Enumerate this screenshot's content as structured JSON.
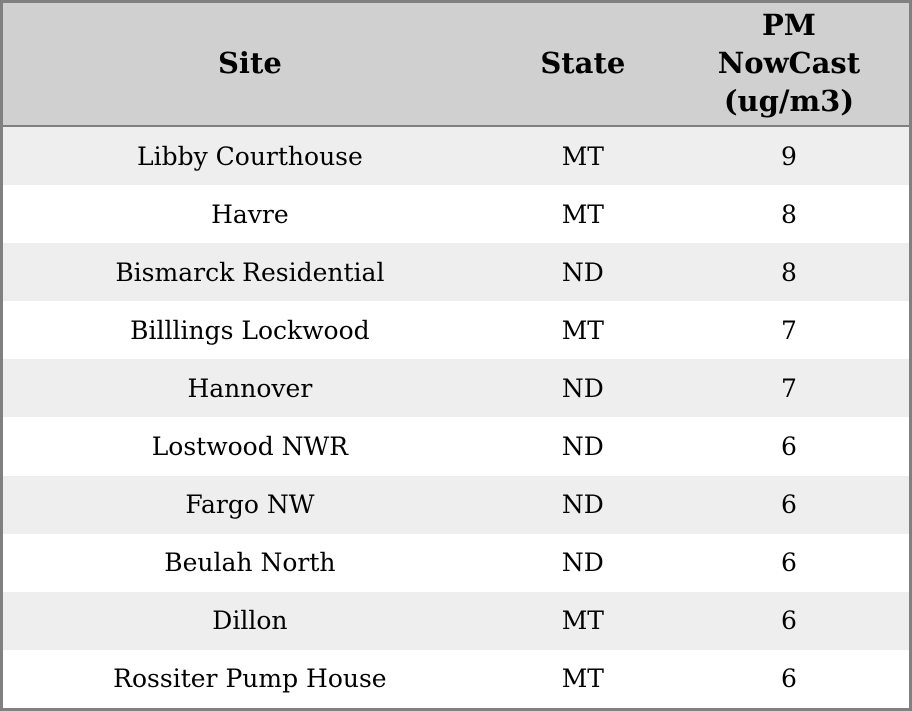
{
  "table": {
    "columns": [
      {
        "label": "Site"
      },
      {
        "label": "State"
      },
      {
        "label": "PM\nNowCast\n(ug/m3)"
      }
    ],
    "rows": [
      {
        "site": "Libby Courthouse",
        "state": "MT",
        "pm_nowcast": "9"
      },
      {
        "site": "Havre",
        "state": "MT",
        "pm_nowcast": "8"
      },
      {
        "site": "Bismarck Residential",
        "state": "ND",
        "pm_nowcast": "8"
      },
      {
        "site": "Billlings Lockwood",
        "state": "MT",
        "pm_nowcast": "7"
      },
      {
        "site": "Hannover",
        "state": "ND",
        "pm_nowcast": "7"
      },
      {
        "site": "Lostwood NWR",
        "state": "ND",
        "pm_nowcast": "6"
      },
      {
        "site": "Fargo NW",
        "state": "ND",
        "pm_nowcast": "6"
      },
      {
        "site": "Beulah North",
        "state": "ND",
        "pm_nowcast": "6"
      },
      {
        "site": "Dillon",
        "state": "MT",
        "pm_nowcast": "6"
      },
      {
        "site": "Rossiter Pump House",
        "state": "MT",
        "pm_nowcast": "6"
      }
    ],
    "colors": {
      "outer_border": "#808080",
      "header_bg": "#d0d0d0",
      "header_separator": "#808080",
      "row_stripe_bg": "#eeeeee",
      "row_plain_bg": "#ffffff",
      "text": "#000000"
    }
  }
}
